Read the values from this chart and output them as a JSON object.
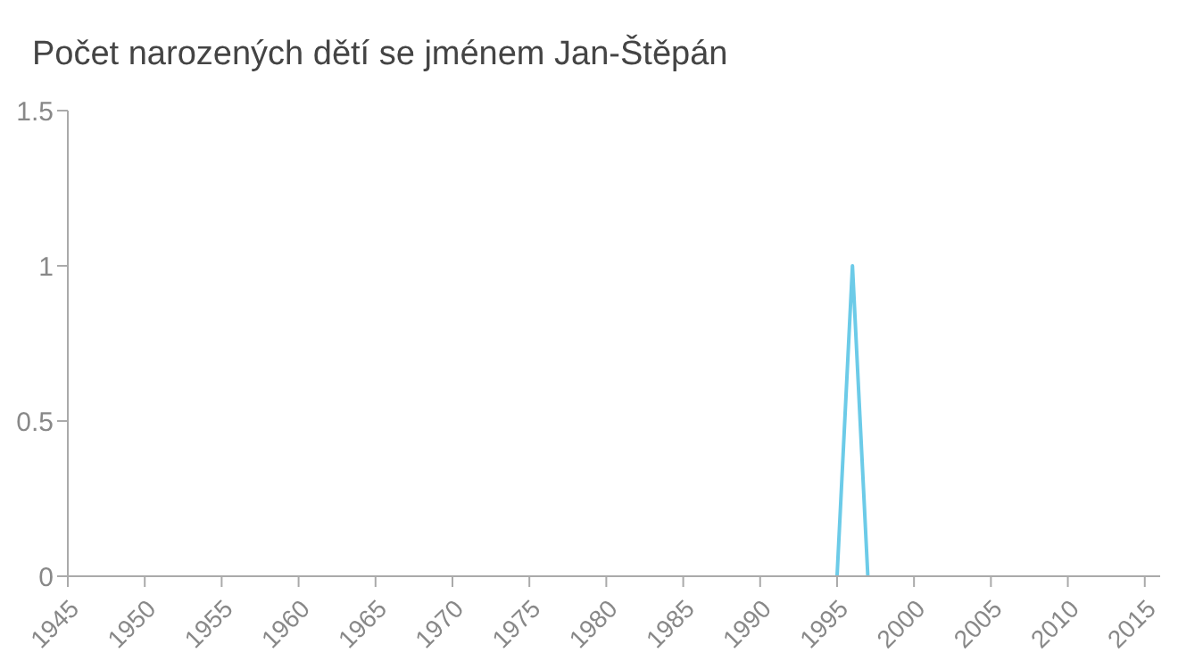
{
  "chart_data": {
    "type": "line",
    "title": "Počet narozených dětí se jménem Jan-Štěpán",
    "x": [
      1995,
      1996,
      1997
    ],
    "series": [
      {
        "color": "#6ccbe8",
        "values": [
          0,
          1,
          0
        ]
      }
    ],
    "xlim": [
      1945,
      2016
    ],
    "xticks": [
      1945,
      1950,
      1955,
      1960,
      1965,
      1970,
      1975,
      1980,
      1985,
      1990,
      1995,
      2000,
      2005,
      2010,
      2015
    ],
    "ylim": [
      0,
      1.5
    ],
    "yticks": [
      0,
      0.5,
      1,
      1.5
    ],
    "grid": false,
    "legend": false,
    "marker": "none",
    "line_style": "solid"
  }
}
